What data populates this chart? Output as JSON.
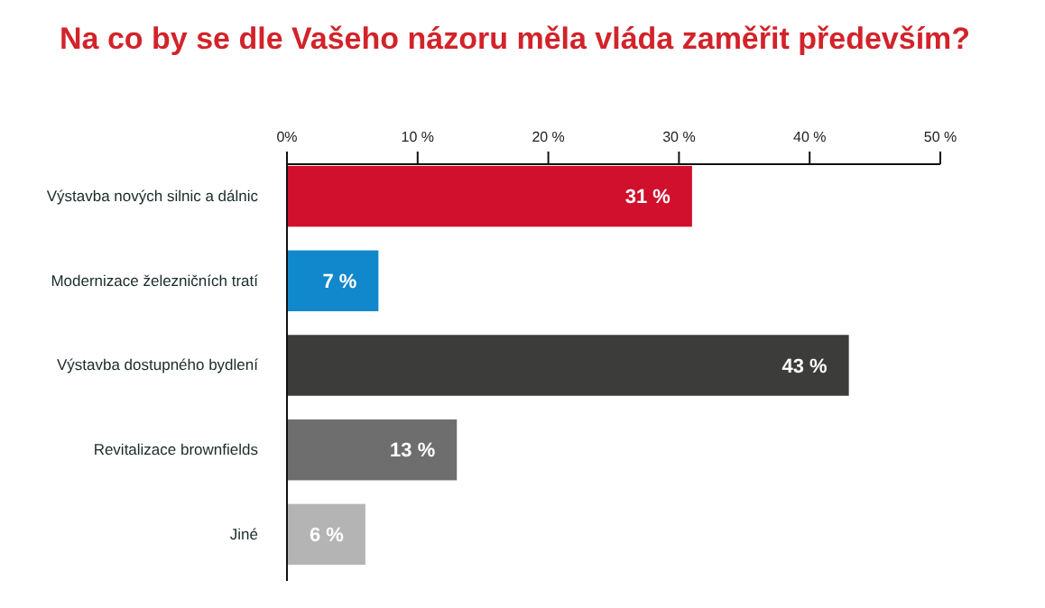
{
  "chart_data": {
    "type": "bar",
    "orientation": "horizontal",
    "title": "Na co by se dle Vašeho názoru měla vláda zaměřit především?",
    "categories": [
      "Výstavba nových silnic a dálnic",
      "Modernizace železničních tratí",
      "Výstavba dostupného bydlení",
      "Revitalizace brownfields",
      "Jiné"
    ],
    "values": [
      31,
      7,
      43,
      13,
      6
    ],
    "colors": [
      "#d0102c",
      "#1187cc",
      "#3c3c3a",
      "#6e6e6e",
      "#b4b4b4"
    ],
    "value_labels": [
      "31 %",
      "7 %",
      "43 %",
      "13 %",
      "6 %"
    ],
    "xlim": [
      0,
      50
    ],
    "xticks": [
      {
        "value": 0,
        "label": "0%"
      },
      {
        "value": 10,
        "label": "10 %"
      },
      {
        "value": 20,
        "label": "20 %"
      },
      {
        "value": 30,
        "label": "30 %"
      },
      {
        "value": 40,
        "label": "40 %"
      },
      {
        "value": 50,
        "label": "50 %"
      }
    ],
    "grid": false
  }
}
